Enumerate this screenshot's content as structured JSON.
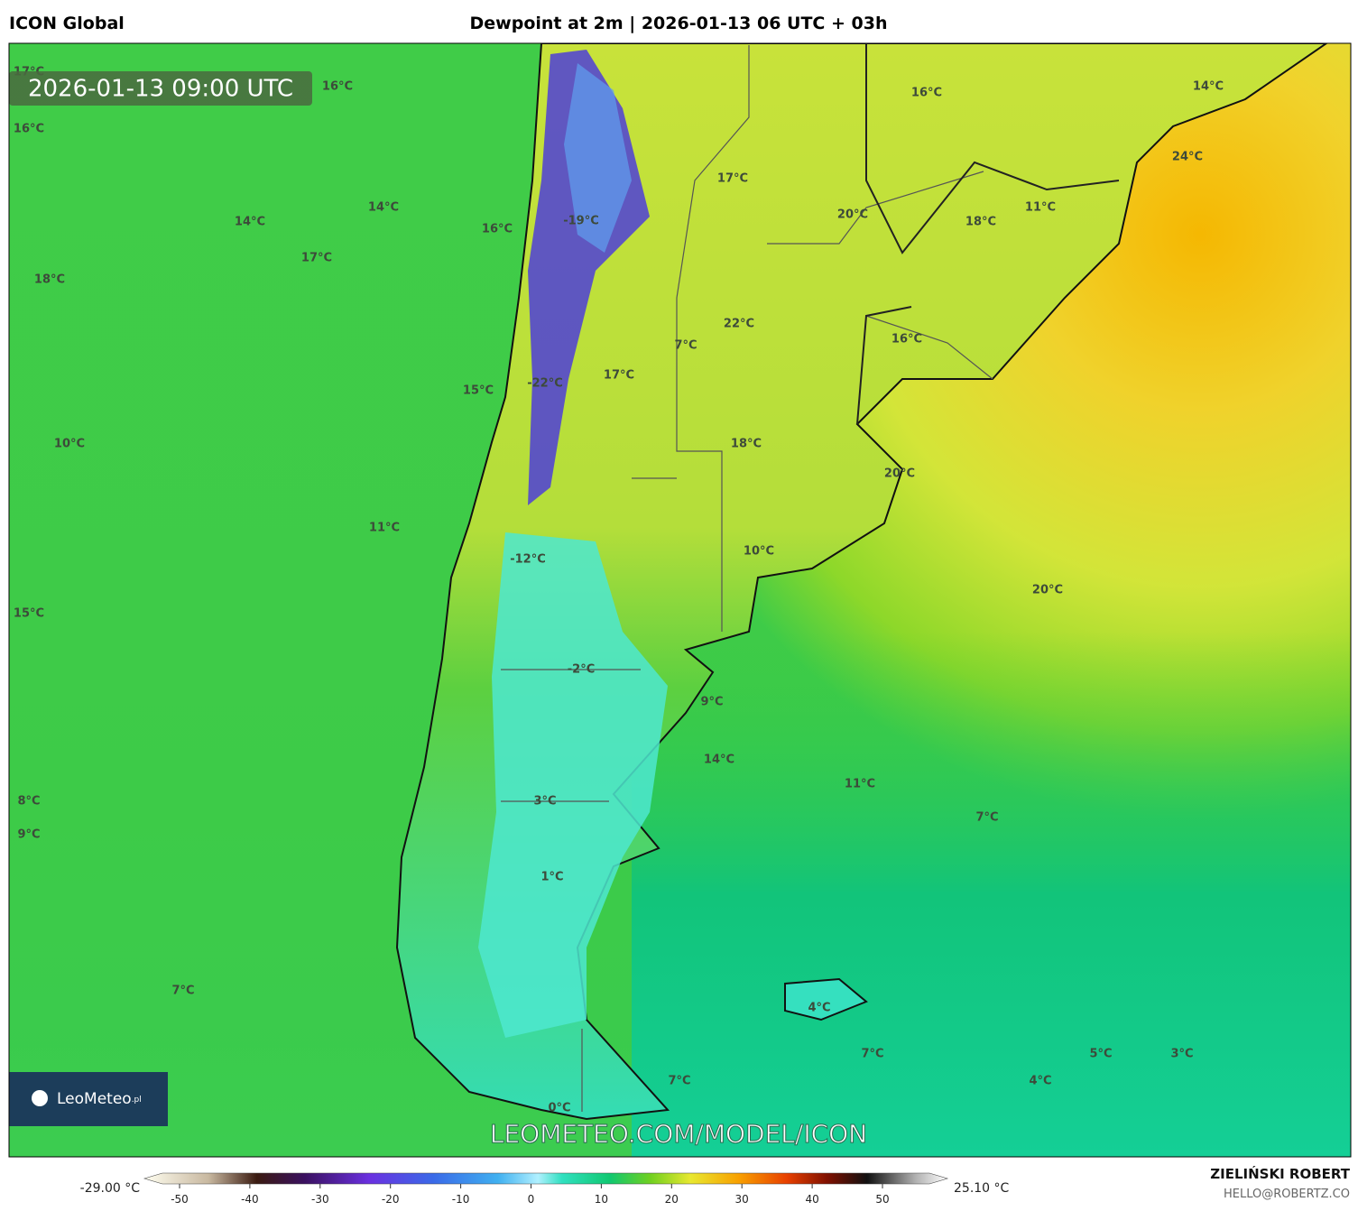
{
  "header": {
    "model": "ICON Global",
    "title": "Dewpoint at 2m | 2026-01-13 06 UTC + 03h"
  },
  "map": {
    "timestamp": "2026-01-13 09:00 UTC",
    "labels": [
      "17°C",
      "16°C",
      "16°C",
      "14°C",
      "14°C",
      "17°C",
      "18°C",
      "16°C",
      "-19°C",
      "17°C",
      "16°C",
      "14°C",
      "24°C",
      "20°C",
      "18°C",
      "11°C",
      "22°C",
      "7°C",
      "16°C",
      "17°C",
      "15°C",
      "-22°C",
      "10°C",
      "18°C",
      "20°C",
      "11°C",
      "10°C",
      "-12°C",
      "20°C",
      "15°C",
      "-2°C",
      "9°C",
      "14°C",
      "11°C",
      "8°C",
      "3°C",
      "7°C",
      "9°C",
      "1°C",
      "7°C",
      "4°C",
      "7°C",
      "5°C",
      "3°C",
      "4°C",
      "7°C",
      "0°C"
    ],
    "logo": "LeoMeteo",
    "logo_suffix": ".pl",
    "watermark": "LEOMETEO.COM/MODEL/ICON"
  },
  "colorbar": {
    "min_label": "-29.00 °C",
    "max_label": "25.10 °C",
    "ticks": [
      -50,
      -40,
      -30,
      -20,
      -10,
      0,
      10,
      20,
      30,
      40,
      50
    ]
  },
  "footer": {
    "author": "ZIELIŃSKI ROBERT",
    "email": "HELLO@ROBERTZ.CO"
  }
}
